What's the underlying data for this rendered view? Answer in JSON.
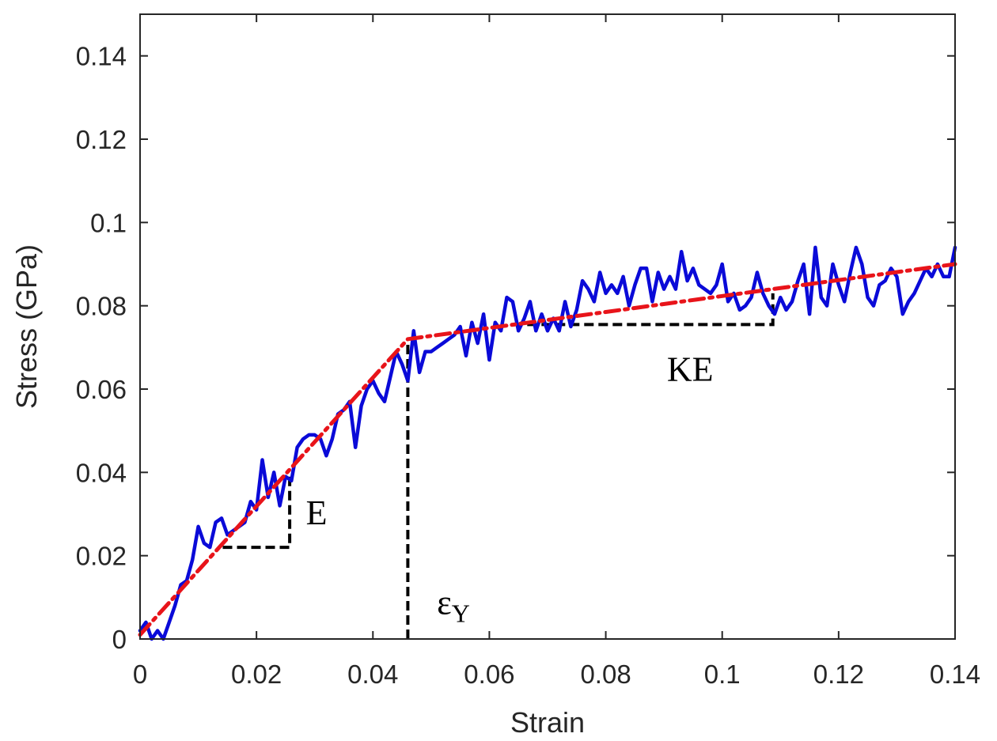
{
  "chart_data": {
    "type": "line",
    "title": "",
    "xlabel": "Strain",
    "ylabel": "Stress (GPa)",
    "xlim": [
      0,
      0.14
    ],
    "ylim": [
      0,
      0.15
    ],
    "xticks": [
      0,
      0.02,
      0.04,
      0.06,
      0.08,
      0.1,
      0.12,
      0.14
    ],
    "xtick_labels": [
      "0",
      "0.02",
      "0.04",
      "0.06",
      "0.08",
      "0.1",
      "0.12",
      "0.14"
    ],
    "yticks": [
      0,
      0.02,
      0.04,
      0.06,
      0.08,
      0.1,
      0.12,
      0.14
    ],
    "ytick_labels": [
      "0",
      "0.02",
      "0.04",
      "0.06",
      "0.08",
      "0.1",
      "0.12",
      "0.14"
    ],
    "grid": false,
    "series": [
      {
        "name": "",
        "style": "solid",
        "color": "#0a0ad8",
        "x": [
          0.0,
          0.001,
          0.002,
          0.003,
          0.004,
          0.005,
          0.006,
          0.007,
          0.008,
          0.009,
          0.01,
          0.011,
          0.012,
          0.013,
          0.014,
          0.015,
          0.016,
          0.017,
          0.018,
          0.019,
          0.02,
          0.021,
          0.022,
          0.023,
          0.024,
          0.025,
          0.026,
          0.027,
          0.028,
          0.029,
          0.03,
          0.031,
          0.032,
          0.033,
          0.034,
          0.035,
          0.036,
          0.037,
          0.038,
          0.039,
          0.04,
          0.041,
          0.042,
          0.043,
          0.044,
          0.045,
          0.046,
          0.047,
          0.048,
          0.049,
          0.05,
          0.051,
          0.052,
          0.053,
          0.054,
          0.055,
          0.056,
          0.057,
          0.058,
          0.059,
          0.06,
          0.061,
          0.062,
          0.063,
          0.064,
          0.065,
          0.066,
          0.067,
          0.068,
          0.069,
          0.07,
          0.071,
          0.072,
          0.073,
          0.074,
          0.075,
          0.076,
          0.077,
          0.078,
          0.079,
          0.08,
          0.081,
          0.082,
          0.083,
          0.084,
          0.085,
          0.086,
          0.087,
          0.088,
          0.089,
          0.09,
          0.091,
          0.092,
          0.093,
          0.094,
          0.095,
          0.096,
          0.097,
          0.098,
          0.099,
          0.1,
          0.101,
          0.102,
          0.103,
          0.104,
          0.105,
          0.106,
          0.107,
          0.108,
          0.109,
          0.11,
          0.111,
          0.112,
          0.113,
          0.114,
          0.115,
          0.116,
          0.117,
          0.118,
          0.119,
          0.12,
          0.121,
          0.122,
          0.123,
          0.124,
          0.125,
          0.126,
          0.127,
          0.128,
          0.129,
          0.13,
          0.131,
          0.132,
          0.133,
          0.134,
          0.135,
          0.136,
          0.137,
          0.138,
          0.139,
          0.14
        ],
        "y": [
          0.002,
          0.004,
          0.0,
          0.002,
          0.0,
          0.004,
          0.008,
          0.013,
          0.014,
          0.019,
          0.027,
          0.023,
          0.022,
          0.028,
          0.029,
          0.025,
          0.026,
          0.027,
          0.028,
          0.033,
          0.031,
          0.043,
          0.034,
          0.04,
          0.032,
          0.039,
          0.038,
          0.046,
          0.048,
          0.049,
          0.049,
          0.048,
          0.044,
          0.048,
          0.054,
          0.055,
          0.057,
          0.046,
          0.056,
          0.06,
          0.062,
          0.059,
          0.057,
          0.063,
          0.069,
          0.066,
          0.062,
          0.074,
          0.064,
          0.069,
          0.069,
          0.07,
          0.071,
          0.072,
          0.073,
          0.075,
          0.068,
          0.076,
          0.071,
          0.078,
          0.067,
          0.076,
          0.074,
          0.082,
          0.081,
          0.074,
          0.077,
          0.081,
          0.074,
          0.078,
          0.074,
          0.077,
          0.074,
          0.081,
          0.075,
          0.079,
          0.086,
          0.084,
          0.081,
          0.088,
          0.083,
          0.085,
          0.083,
          0.087,
          0.08,
          0.085,
          0.089,
          0.089,
          0.081,
          0.088,
          0.084,
          0.087,
          0.084,
          0.093,
          0.086,
          0.089,
          0.085,
          0.084,
          0.083,
          0.085,
          0.09,
          0.081,
          0.083,
          0.079,
          0.08,
          0.082,
          0.088,
          0.083,
          0.08,
          0.078,
          0.082,
          0.079,
          0.081,
          0.086,
          0.09,
          0.078,
          0.094,
          0.082,
          0.08,
          0.09,
          0.085,
          0.081,
          0.088,
          0.094,
          0.09,
          0.082,
          0.08,
          0.085,
          0.086,
          0.089,
          0.087,
          0.078,
          0.081,
          0.083,
          0.086,
          0.089,
          0.087,
          0.09,
          0.087,
          0.087,
          0.094
        ]
      },
      {
        "name": "",
        "style": "dash-dot",
        "color": "#e8141a",
        "x": [
          0.0,
          0.046,
          0.14
        ],
        "y": [
          0.001,
          0.072,
          0.09
        ]
      }
    ],
    "annotations": [
      {
        "type": "guide",
        "style": "dashed",
        "color": "#000000",
        "points": [
          [
            0.0142,
            0.022
          ],
          [
            0.0257,
            0.022
          ],
          [
            0.0257,
            0.04
          ]
        ]
      },
      {
        "type": "guide",
        "style": "dashed",
        "color": "#000000",
        "points": [
          [
            0.046,
            0.0
          ],
          [
            0.046,
            0.072
          ]
        ]
      },
      {
        "type": "guide",
        "style": "dashed",
        "color": "#000000",
        "points": [
          [
            0.0665,
            0.0755
          ],
          [
            0.1087,
            0.0755
          ],
          [
            0.1087,
            0.083
          ]
        ]
      },
      {
        "type": "label",
        "text": "E",
        "x": 0.0285,
        "y": 0.0275
      },
      {
        "type": "label",
        "text": "ε",
        "sub": "Y",
        "x": 0.051,
        "y": 0.006
      },
      {
        "type": "label",
        "text": "KE",
        "x": 0.0905,
        "y": 0.062
      }
    ]
  }
}
